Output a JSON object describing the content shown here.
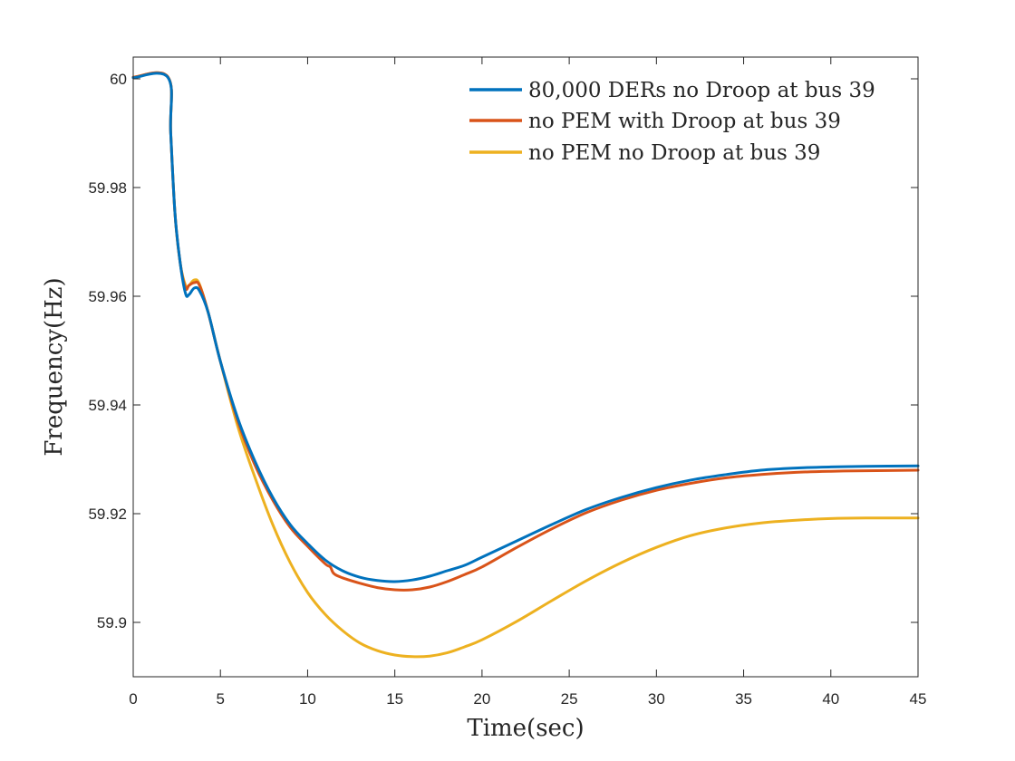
{
  "chart_data": {
    "type": "line",
    "title": "",
    "xlabel": "Time(sec)",
    "ylabel": "Frequency(Hz)",
    "xlim": [
      0,
      45
    ],
    "ylim": [
      59.89,
      60.004
    ],
    "xticks": [
      0,
      5,
      10,
      15,
      20,
      25,
      30,
      35,
      40,
      45
    ],
    "yticks": [
      59.9,
      59.92,
      59.94,
      59.96,
      59.98,
      60
    ],
    "xtick_labels": [
      "0",
      "5",
      "10",
      "15",
      "20",
      "25",
      "30",
      "35",
      "40",
      "45"
    ],
    "ytick_labels": [
      "59.9",
      "59.92",
      "59.94",
      "59.96",
      "59.98",
      "60"
    ],
    "grid": false,
    "legend_position": "top-right",
    "series": [
      {
        "name": "80,000 DERs no Droop at bus 39",
        "color": "#0072BD",
        "x": [
          0,
          2,
          2.15,
          2.4,
          2.7,
          3.0,
          3.2,
          3.5,
          3.8,
          4.3,
          5,
          6,
          7,
          8,
          9,
          10,
          11,
          12,
          13,
          14,
          15,
          16,
          17,
          18,
          19,
          20,
          22,
          24,
          26,
          28,
          30,
          32,
          34,
          36,
          38,
          40,
          42,
          45
        ],
        "y": [
          60.0002,
          60.0002,
          59.99,
          59.975,
          59.966,
          59.9605,
          59.9603,
          59.9615,
          59.961,
          59.957,
          59.948,
          59.9375,
          59.9295,
          59.923,
          59.918,
          59.9145,
          59.9115,
          59.9095,
          59.9083,
          59.9077,
          59.9075,
          59.9078,
          59.9085,
          59.9095,
          59.9105,
          59.912,
          59.915,
          59.918,
          59.9208,
          59.923,
          59.9248,
          59.9262,
          59.9272,
          59.928,
          59.9284,
          59.9286,
          59.9287,
          59.9288
        ]
      },
      {
        "name": "no PEM with Droop at bus 39",
        "color": "#D95319",
        "x": [
          0,
          2,
          2.15,
          2.4,
          2.7,
          3.0,
          3.2,
          3.5,
          3.8,
          4.3,
          5,
          6,
          7,
          8,
          9,
          10,
          11,
          11.3,
          11.5,
          12,
          13,
          14,
          15,
          16,
          17,
          18,
          19,
          20,
          22,
          24,
          26,
          28,
          30,
          32,
          34,
          36,
          38,
          40,
          42,
          45
        ],
        "y": [
          60.0003,
          60.0003,
          59.99,
          59.975,
          59.966,
          59.9615,
          59.962,
          59.9625,
          59.962,
          59.957,
          59.948,
          59.937,
          59.9288,
          59.9225,
          59.9175,
          59.914,
          59.9108,
          59.9102,
          59.909,
          59.9082,
          59.9072,
          59.9064,
          59.906,
          59.906,
          59.9065,
          59.9075,
          59.9088,
          59.9102,
          59.9138,
          59.9172,
          59.9202,
          59.9225,
          59.9243,
          59.9256,
          59.9266,
          59.9272,
          59.9276,
          59.9278,
          59.9279,
          59.928
        ]
      },
      {
        "name": "no PEM no Droop at bus 39",
        "color": "#EDB120",
        "x": [
          0,
          2,
          2.15,
          2.4,
          2.7,
          3.0,
          3.2,
          3.5,
          3.8,
          4.3,
          5,
          6,
          7,
          8,
          9,
          10,
          11,
          12,
          13,
          14,
          15,
          16,
          17,
          18,
          19,
          20,
          22,
          24,
          26,
          28,
          30,
          32,
          34,
          36,
          38,
          40,
          42,
          45
        ],
        "y": [
          60.0003,
          60.0003,
          59.99,
          59.975,
          59.966,
          59.962,
          59.962,
          59.963,
          59.9622,
          59.957,
          59.948,
          59.936,
          59.9265,
          59.918,
          59.911,
          59.9055,
          59.9015,
          59.8985,
          59.8962,
          59.8948,
          59.894,
          59.8937,
          59.8938,
          59.8944,
          59.8955,
          59.8968,
          59.9002,
          59.904,
          59.9077,
          59.911,
          59.9138,
          59.916,
          59.9174,
          59.9183,
          59.9188,
          59.9191,
          59.9192,
          59.9192
        ]
      }
    ]
  }
}
